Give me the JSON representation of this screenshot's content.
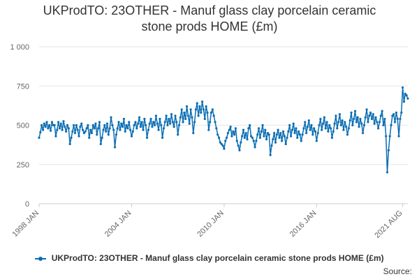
{
  "chart_data": {
    "type": "line",
    "title_line1": "UKProdTO: 23OTHER - Manuf glass clay porcelain ceramic",
    "title_line2": "stone prods HOME (£m)",
    "xlabel": "",
    "ylabel": "",
    "ylim": [
      0,
      1000
    ],
    "yticks": [
      0,
      250,
      500,
      750,
      1000
    ],
    "ytick_labels": [
      "0",
      "250",
      "500",
      "750",
      "1 000"
    ],
    "xtick_labels": [
      "1998 JAN",
      "2004 JAN",
      "2010 JAN",
      "2016 JAN",
      "2021 AUG"
    ],
    "x_start": "1998-01",
    "x_end": "2021-08",
    "grid": "horizontal",
    "legend_position": "bottom",
    "series": [
      {
        "name": "UKProdTO: 23OTHER - Manuf glass clay porcelain ceramic stone prods HOME (£m)",
        "color": "#0a6eb4",
        "yearly_values": [
          [
            420,
            455,
            500,
            470,
            510,
            490,
            520,
            480,
            500,
            465,
            520,
            500
          ],
          [
            500,
            430,
            470,
            520,
            480,
            510,
            470,
            525,
            490,
            460,
            500,
            480
          ],
          [
            380,
            420,
            460,
            500,
            450,
            500,
            470,
            430,
            490,
            510,
            470,
            450
          ],
          [
            460,
            480,
            500,
            420,
            470,
            450,
            500,
            480,
            510,
            440,
            480,
            520
          ],
          [
            380,
            420,
            470,
            500,
            460,
            510,
            440,
            480,
            550,
            500,
            470,
            360
          ],
          [
            440,
            480,
            520,
            470,
            510,
            490,
            540,
            460,
            500,
            480,
            520,
            470
          ],
          [
            430,
            460,
            500,
            520,
            480,
            510,
            550,
            490,
            520,
            470,
            540,
            500
          ],
          [
            420,
            470,
            510,
            540,
            490,
            520,
            500,
            560,
            510,
            470,
            540,
            500
          ],
          [
            420,
            480,
            520,
            560,
            500,
            540,
            510,
            570,
            520,
            490,
            560,
            520
          ],
          [
            440,
            500,
            550,
            600,
            520,
            580,
            540,
            620,
            560,
            510,
            600,
            550
          ],
          [
            450,
            520,
            600,
            640,
            560,
            620,
            580,
            650,
            600,
            540,
            620,
            580
          ],
          [
            470,
            520,
            580,
            600,
            560,
            520,
            480,
            440,
            420,
            390,
            380,
            370
          ],
          [
            350,
            400,
            420,
            450,
            470,
            490,
            430,
            460,
            440,
            480,
            400,
            370
          ],
          [
            340,
            390,
            430,
            470,
            420,
            450,
            410,
            480,
            500,
            430,
            420,
            400
          ],
          [
            360,
            400,
            440,
            480,
            420,
            460,
            500,
            430,
            470,
            410,
            450,
            440
          ],
          [
            310,
            370,
            410,
            450,
            390,
            440,
            470,
            420,
            450,
            400,
            460,
            430
          ],
          [
            380,
            420,
            460,
            500,
            430,
            470,
            510,
            450,
            480,
            420,
            460,
            440
          ],
          [
            400,
            440,
            480,
            520,
            450,
            490,
            530,
            470,
            500,
            440,
            480,
            460
          ],
          [
            400,
            450,
            500,
            540,
            470,
            510,
            550,
            480,
            520,
            460,
            500,
            480
          ],
          [
            420,
            460,
            510,
            560,
            480,
            520,
            570,
            500,
            530,
            470,
            520,
            490
          ],
          [
            440,
            480,
            530,
            580,
            500,
            540,
            590,
            520,
            550,
            490,
            540,
            510
          ],
          [
            450,
            500,
            550,
            600,
            520,
            560,
            580,
            540,
            570,
            510,
            550,
            520
          ],
          [
            480,
            520,
            560,
            590,
            500,
            540,
            430,
            200,
            340,
            430,
            500,
            560
          ],
          [
            570,
            520,
            580,
            540,
            430,
            540,
            580,
            740,
            650,
            700,
            690,
            670
          ]
        ],
        "note_unused": ""
      }
    ]
  },
  "legend": {
    "label": "UKProdTO: 23OTHER - Manuf glass clay porcelain ceramic stone prods HOME (£m)"
  },
  "source_label": "Source:"
}
